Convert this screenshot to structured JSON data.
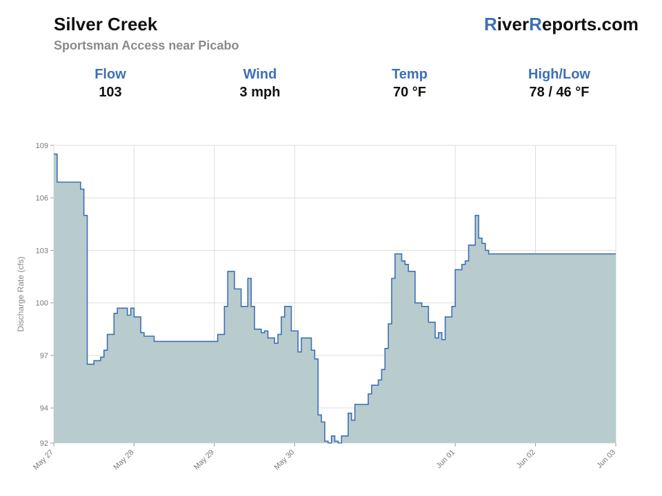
{
  "header": {
    "title": "Silver Creek",
    "subtitle": "Sportsman Access near Picabo",
    "brand_r1": "R",
    "brand_mid1": "iver",
    "brand_r2": "R",
    "brand_mid2": "eports.com",
    "brand_accent_color": "#3d6fb6"
  },
  "stats": [
    {
      "label": "Flow",
      "value": "103"
    },
    {
      "label": "Wind",
      "value": "3 mph"
    },
    {
      "label": "Temp",
      "value": "70 °F"
    },
    {
      "label": "High/Low",
      "value": "78 / 46 °F"
    }
  ],
  "chart_data": {
    "type": "area",
    "ylabel": "Discharge Rate (cfs)",
    "ylim": [
      92,
      109
    ],
    "yticks": [
      "92",
      "94",
      "97",
      "100",
      "103",
      "106",
      "109"
    ],
    "xlim": [
      "2024-05-27",
      "2024-06-03"
    ],
    "xticks": [
      "May 27",
      "May 28",
      "May 29",
      "May 30",
      "Jun 01",
      "Jun 02",
      "Jun 03"
    ],
    "grid": true,
    "line_color": "#3d6fb6",
    "fill_color": "#b8cbcd",
    "series": [
      {
        "step": "post",
        "x": [
          "2024-05-27 00:00",
          "2024-05-27 01:00",
          "2024-05-27 08:00",
          "2024-05-27 09:00",
          "2024-05-27 10:00",
          "2024-05-27 12:00",
          "2024-05-27 14:00",
          "2024-05-27 15:00",
          "2024-05-27 16:00",
          "2024-05-27 18:00",
          "2024-05-27 19:00",
          "2024-05-27 22:00",
          "2024-05-27 23:00",
          "2024-05-28 00:00",
          "2024-05-28 02:00",
          "2024-05-28 03:00",
          "2024-05-28 06:00",
          "2024-05-29 01:00",
          "2024-05-29 03:00",
          "2024-05-29 04:00",
          "2024-05-29 06:00",
          "2024-05-29 08:00",
          "2024-05-29 10:00",
          "2024-05-29 11:00",
          "2024-05-29 12:00",
          "2024-05-29 14:00",
          "2024-05-29 15:00",
          "2024-05-29 16:00",
          "2024-05-29 18:00",
          "2024-05-29 19:00",
          "2024-05-29 20:00",
          "2024-05-29 21:00",
          "2024-05-29 23:00",
          "2024-05-30 01:00",
          "2024-05-30 02:00",
          "2024-05-30 03:00",
          "2024-05-30 05:00",
          "2024-05-30 06:00",
          "2024-05-30 07:00",
          "2024-05-30 08:00",
          "2024-05-30 09:00",
          "2024-05-30 10:00",
          "2024-05-30 11:00",
          "2024-05-30 12:00",
          "2024-05-30 13:00",
          "2024-05-30 14:00",
          "2024-05-30 16:00",
          "2024-05-30 17:00",
          "2024-05-30 18:00",
          "2024-05-30 22:00",
          "2024-05-30 23:00",
          "2024-05-31 01:00",
          "2024-05-31 02:00",
          "2024-05-31 03:00",
          "2024-05-31 04:00",
          "2024-05-31 05:00",
          "2024-05-31 06:00",
          "2024-05-31 08:00",
          "2024-05-31 09:00",
          "2024-05-31 10:00",
          "2024-05-31 12:00",
          "2024-05-31 14:00",
          "2024-05-31 16:00",
          "2024-05-31 18:00",
          "2024-05-31 19:00",
          "2024-05-31 20:00",
          "2024-05-31 21:00",
          "2024-05-31 23:00",
          "2024-06-01 00:00",
          "2024-06-01 02:00",
          "2024-06-01 03:00",
          "2024-06-01 04:00",
          "2024-06-01 06:00",
          "2024-06-01 07:00",
          "2024-06-01 08:00",
          "2024-06-01 09:00",
          "2024-06-01 10:00",
          "2024-06-01 16:00",
          "2024-06-01 17:00",
          "2024-06-01 18:00",
          "2024-06-02 01:00",
          "2024-06-02 02:00",
          "2024-06-02 09:00",
          "2024-06-02 10:00",
          "2024-06-02 11:00",
          "2024-06-02 14:00",
          "2024-06-02 17:00",
          "2024-06-02 18:00",
          "2024-06-02 19:00",
          "2024-06-02 20:00",
          "2024-06-02 21:00",
          "2024-06-02 22:00",
          "2024-06-02 23:00",
          "2024-06-03 00:00"
        ],
        "values": [
          108.5,
          106.9,
          106.5,
          105.0,
          96.5,
          96.7,
          96.9,
          97.3,
          98.2,
          99.4,
          99.7,
          99.3,
          99.7,
          99.2,
          98.3,
          98.1,
          97.8,
          98.2,
          99.8,
          101.8,
          100.8,
          99.8,
          101.4,
          99.8,
          98.5,
          98.3,
          98.4,
          98.0,
          97.7,
          98.2,
          99.2,
          99.8,
          98.4,
          97.2,
          98.0,
          98.0,
          97.3,
          96.8,
          93.6,
          93.2,
          92.1,
          92.0,
          92.4,
          92.1,
          92.0,
          92.4,
          93.7,
          93.3,
          94.2,
          94.8,
          95.3,
          95.6,
          96.2,
          97.4,
          98.8,
          101.4,
          102.8,
          102.4,
          102.2,
          101.8,
          100.0,
          99.8,
          98.9,
          98.0,
          98.3,
          97.9,
          99.2,
          99.8,
          101.9,
          102.2,
          102.4,
          103.3,
          105.0,
          103.7,
          103.4,
          103.0,
          102.8,
          102.8,
          102.8,
          102.8,
          102.8,
          102.8,
          102.8,
          102.8,
          102.8,
          102.8,
          102.8,
          102.8,
          102.8,
          102.8,
          102.8,
          102.8,
          102.8,
          102.8
        ]
      }
    ]
  }
}
